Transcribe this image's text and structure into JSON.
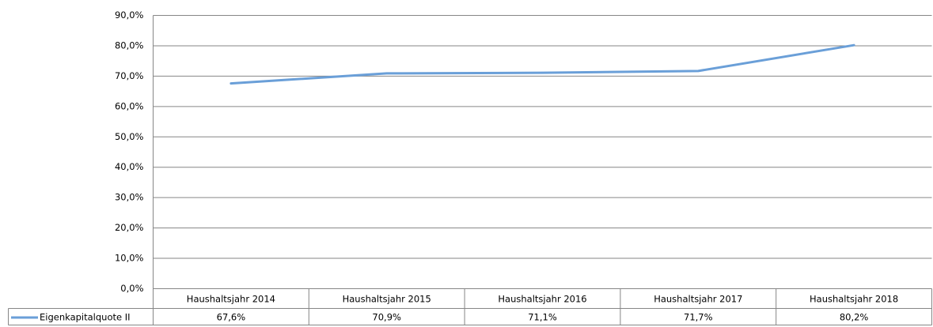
{
  "chart_data": {
    "type": "line",
    "categories": [
      "Haushaltsjahr 2014",
      "Haushaltsjahr 2015",
      "Haushaltsjahr 2016",
      "Haushaltsjahr 2017",
      "Haushaltsjahr 2018"
    ],
    "series": [
      {
        "name": "Eigenkapitalquote II",
        "color": "#6a9fd8",
        "values": [
          67.6,
          70.9,
          71.1,
          71.7,
          80.2
        ],
        "value_labels": [
          "67,6%",
          "70,9%",
          "71,1%",
          "71,7%",
          "80,2%"
        ]
      }
    ],
    "ylim": [
      0,
      90
    ],
    "yticks": [
      {
        "value": 0,
        "label": "0,0%"
      },
      {
        "value": 10,
        "label": "10,0%"
      },
      {
        "value": 20,
        "label": "20,0%"
      },
      {
        "value": 30,
        "label": "30,0%"
      },
      {
        "value": 40,
        "label": "40,0%"
      },
      {
        "value": 50,
        "label": "50,0%"
      },
      {
        "value": 60,
        "label": "60,0%"
      },
      {
        "value": 70,
        "label": "70,0%"
      },
      {
        "value": 80,
        "label": "80,0%"
      },
      {
        "value": 90,
        "label": "90,0%"
      }
    ],
    "grid": true
  }
}
